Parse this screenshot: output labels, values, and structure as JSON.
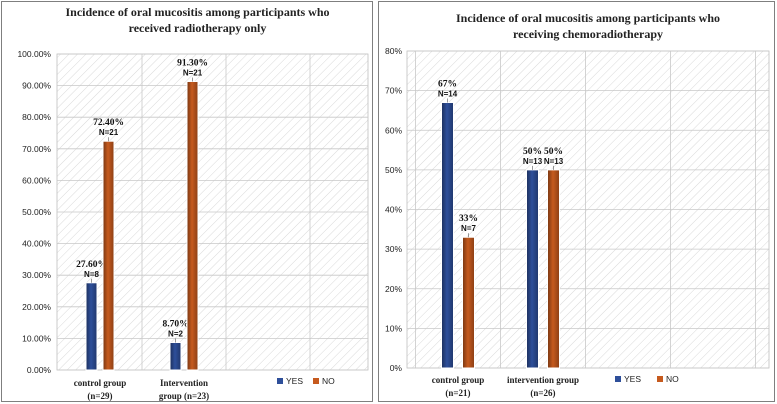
{
  "chart_data": [
    {
      "type": "bar",
      "title_lines": [
        "Incidence of oral mucositis  among participants who",
        "received radiotherapy  only"
      ],
      "categories": [
        [
          "control group",
          "(n=29)"
        ],
        [
          "Intervention",
          "group (n=23)"
        ]
      ],
      "series": [
        {
          "name": "YES",
          "color": "#2e4f9a",
          "values": [
            27.6,
            8.7
          ],
          "labels": [
            "27.60%",
            "8.70%"
          ],
          "n_labels": [
            "N=8",
            "N=2"
          ]
        },
        {
          "name": "NO",
          "color": "#c65a1e",
          "values": [
            72.4,
            91.3
          ],
          "labels": [
            "72.40%",
            "91.30%"
          ],
          "n_labels": [
            "N=21",
            "N=21"
          ]
        }
      ],
      "yticks": [
        "0.00%",
        "10.00%",
        "20.00%",
        "30.00%",
        "40.00%",
        "50.00%",
        "60.00%",
        "70.00%",
        "80.00%",
        "90.00%",
        "100.00%"
      ],
      "ylim": [
        0,
        100
      ],
      "legend_position": "bottom-right"
    },
    {
      "type": "bar",
      "title_lines": [
        "Incidence of oral mucositis   among participants who",
        "receiving chemoradiotherapy"
      ],
      "categories": [
        [
          "control group",
          "(n=21)"
        ],
        [
          "intervention group",
          "(n=26)"
        ]
      ],
      "series": [
        {
          "name": "YES",
          "color": "#2e4f9a",
          "values": [
            67,
            50
          ],
          "labels": [
            "67%",
            "50%"
          ],
          "n_labels": [
            "N=14",
            "N=13"
          ]
        },
        {
          "name": "NO",
          "color": "#c65a1e",
          "values": [
            33,
            50
          ],
          "labels": [
            "33%",
            "50%"
          ],
          "n_labels": [
            "N=7",
            "N=13"
          ]
        }
      ],
      "yticks": [
        "0%",
        "10%",
        "20%",
        "30%",
        "40%",
        "50%",
        "60%",
        "70%",
        "80%"
      ],
      "ylim": [
        0,
        80
      ],
      "legend_position": "bottom-right"
    }
  ]
}
